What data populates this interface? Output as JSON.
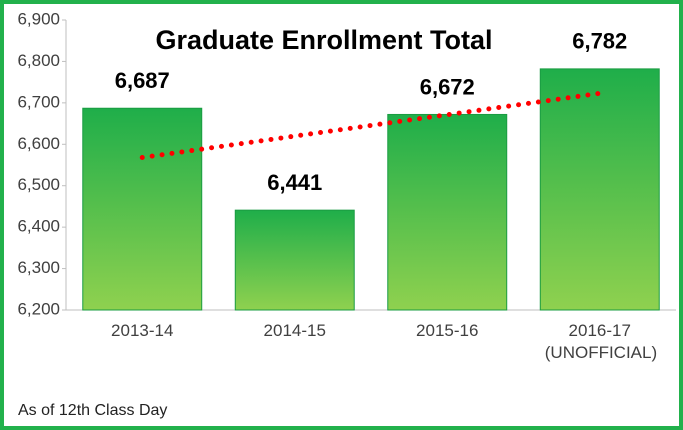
{
  "chart_data": {
    "type": "bar",
    "title": "Graduate Enrollment Total",
    "categories": [
      "2013-14",
      "2014-15",
      "2015-16",
      "2016-17 (UNOFFICIAL)"
    ],
    "values": [
      6687,
      6441,
      6672,
      6782
    ],
    "value_labels": [
      "6,687",
      "6,441",
      "6,672",
      "6,782"
    ],
    "color": [
      "#1fae4a",
      "#8fd14f"
    ],
    "trendline": {
      "type": "linear",
      "color": "#ff0000"
    },
    "ylim": [
      6200,
      6900
    ],
    "yticks": [
      {
        "value": 6200,
        "label": "6,200"
      },
      {
        "value": 6300,
        "label": "6,300"
      },
      {
        "value": 6400,
        "label": "6,400"
      },
      {
        "value": 6500,
        "label": "6,500"
      },
      {
        "value": 6600,
        "label": "6,600"
      },
      {
        "value": 6700,
        "label": "6,700"
      },
      {
        "value": 6800,
        "label": "6,800"
      },
      {
        "value": 6900,
        "label": "6,900"
      }
    ],
    "note": "As of 12th Class Day"
  }
}
